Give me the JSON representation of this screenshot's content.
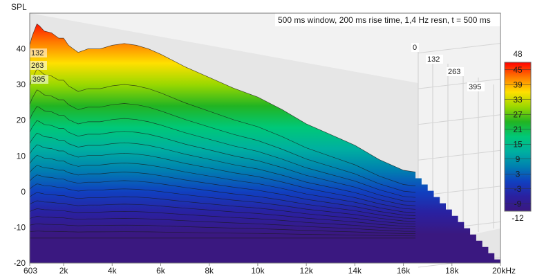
{
  "chart_data": {
    "type": "area",
    "subtype": "waterfall-3d",
    "title": "500 ms window, 200 ms rise time,  1,4 Hz resn, t = 500 ms",
    "ylabel": "SPL",
    "xunit": "kHz",
    "x_ticks": [
      "603",
      "2k",
      "4k",
      "6k",
      "8k",
      "10k",
      "12k",
      "14k",
      "16k",
      "18k",
      "20kHz"
    ],
    "x_tick_values": [
      603,
      2000,
      4000,
      6000,
      8000,
      10000,
      12000,
      14000,
      16000,
      18000,
      20000
    ],
    "y_ticks": [
      "40",
      "30",
      "20",
      "10",
      "0",
      "-10",
      "-20"
    ],
    "y_tick_values": [
      40,
      30,
      20,
      10,
      0,
      -10,
      -20
    ],
    "xlim": [
      603,
      20000
    ],
    "ylim": [
      -20,
      50
    ],
    "time_ms_labels": [
      "0",
      "132",
      "263",
      "395"
    ],
    "grid": true,
    "colorbar": {
      "position": "right",
      "ticks": [
        "48",
        "45",
        "39",
        "33",
        "27",
        "21",
        "15",
        "9",
        "3",
        "-3",
        "-9",
        "-12"
      ],
      "tick_values": [
        48,
        45,
        39,
        33,
        27,
        21,
        15,
        9,
        3,
        -3,
        -9,
        -12
      ],
      "range": [
        -12,
        48
      ]
    },
    "front_slice": {
      "time_ms": 0,
      "x": [
        603,
        700,
        900,
        1000,
        1200,
        1500,
        1800,
        2000,
        2200,
        2400,
        2600,
        3000,
        3500,
        4000,
        4500,
        5000,
        5500,
        6000,
        7000,
        8000,
        9000,
        10000,
        11000,
        12000,
        13000,
        14000,
        15000,
        16000,
        16500
      ],
      "y": [
        41,
        43.5,
        47,
        46.5,
        45,
        44.5,
        43,
        43,
        41,
        40,
        39,
        40,
        40,
        41,
        41.5,
        41,
        40,
        38.5,
        35,
        32,
        29,
        26.5,
        23,
        19,
        16,
        13,
        9,
        6,
        5.5
      ]
    },
    "floor_level": -13,
    "slice_count": 18
  }
}
